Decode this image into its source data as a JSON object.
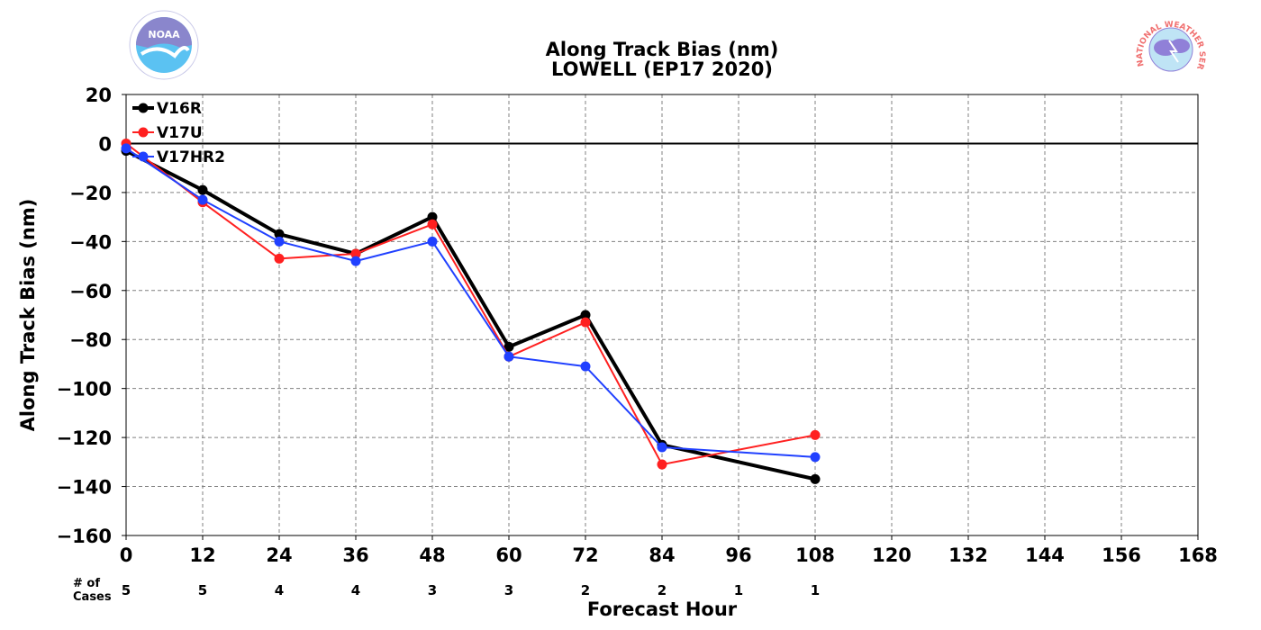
{
  "chart_data": {
    "type": "line",
    "title": "Along Track Bias (nm)",
    "subtitle": "LOWELL (EP17 2020)",
    "xlabel": "Forecast Hour",
    "ylabel": "Along Track Bias (nm)",
    "xlim": [
      0,
      168
    ],
    "ylim": [
      -160,
      20
    ],
    "x_ticks": [
      "0",
      "12",
      "24",
      "36",
      "48",
      "60",
      "72",
      "84",
      "96",
      "108",
      "120",
      "132",
      "144",
      "156",
      "168"
    ],
    "y_ticks": [
      "20",
      "0",
      "−20",
      "−40",
      "−60",
      "−80",
      "−100",
      "−120",
      "−140",
      "−160"
    ],
    "grid": true,
    "legend_position": "top-left",
    "cases_label_line1": "# of",
    "cases_label_line2": "Cases",
    "cases": [
      {
        "x": 0,
        "label": "5"
      },
      {
        "x": 12,
        "label": "5"
      },
      {
        "x": 24,
        "label": "4"
      },
      {
        "x": 36,
        "label": "4"
      },
      {
        "x": 48,
        "label": "3"
      },
      {
        "x": 60,
        "label": "3"
      },
      {
        "x": 72,
        "label": "2"
      },
      {
        "x": 84,
        "label": "2"
      },
      {
        "x": 96,
        "label": "1"
      },
      {
        "x": 108,
        "label": "1"
      }
    ],
    "series": [
      {
        "name": "V16R",
        "color": "#000000",
        "x": [
          0,
          12,
          24,
          36,
          48,
          60,
          72,
          84,
          108
        ],
        "values": [
          -3,
          -19,
          -37,
          -45,
          -30,
          -83,
          -70,
          -123,
          -137
        ]
      },
      {
        "name": "V17U",
        "color": "#ff2020",
        "x": [
          0,
          12,
          24,
          36,
          48,
          60,
          72,
          84,
          108
        ],
        "values": [
          0,
          -24,
          -47,
          -45,
          -33,
          -87,
          -73,
          -131,
          -119
        ]
      },
      {
        "name": "V17HR2",
        "color": "#2040ff",
        "x": [
          0,
          12,
          24,
          36,
          48,
          60,
          72,
          84,
          108
        ],
        "values": [
          -2,
          -23,
          -40,
          -48,
          -40,
          -87,
          -91,
          -124,
          -128
        ]
      }
    ]
  },
  "logos": {
    "noaa_text": "NOAA",
    "nws_text": "NATIONAL WEATHER SERVICE"
  },
  "colors": {
    "noaa_blue": "#5bc2f2",
    "noaa_navy": "#8a86cc",
    "nws_red": "#f07070",
    "nws_purple": "#9080d8"
  }
}
